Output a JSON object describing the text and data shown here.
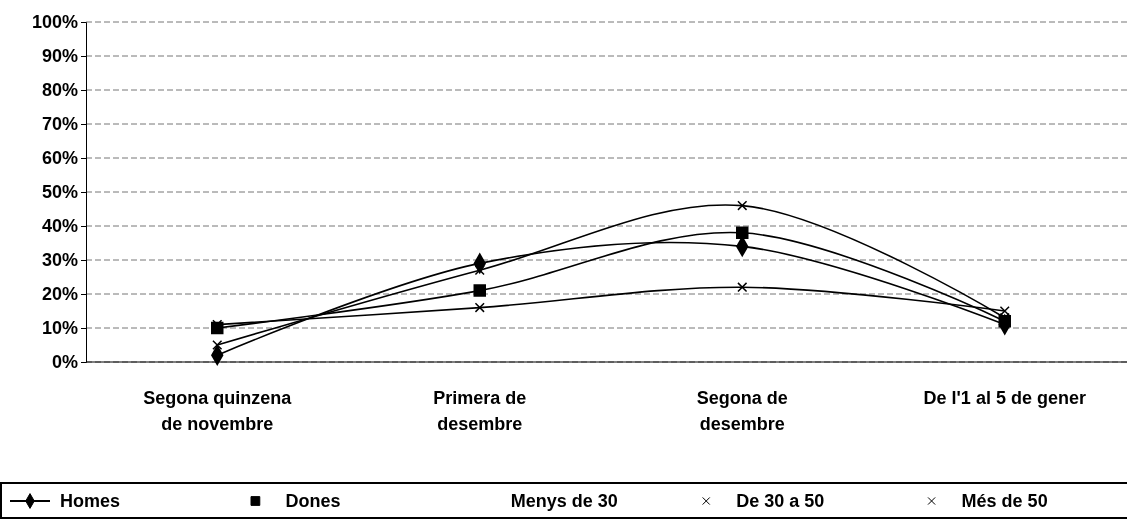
{
  "chart_data": {
    "type": "line",
    "categories": [
      "Segona quinzena\nde novembre",
      "Primera de\ndesembre",
      "Segona de\ndesembre",
      "De l'1 al 5 de gener"
    ],
    "series": [
      {
        "name": "Homes",
        "color": "#000000",
        "marker": "diamond",
        "values": [
          2,
          29,
          34,
          11
        ]
      },
      {
        "name": "Dones",
        "color": "#000000",
        "marker": "square",
        "values": [
          10,
          21,
          38,
          12
        ]
      },
      {
        "name": "Menys de 30",
        "marker": "none",
        "values": [
          null,
          null,
          null,
          null
        ]
      },
      {
        "name": "De 30 a 50",
        "color": "#000000",
        "marker": "cross",
        "values": [
          5,
          27,
          46,
          13
        ]
      },
      {
        "name": "Més de 50",
        "color": "#000000",
        "marker": "cross",
        "values": [
          11,
          16,
          22,
          15
        ]
      }
    ],
    "ylim": [
      0,
      100
    ],
    "yticks": [
      {
        "value": 0,
        "label": "0%"
      },
      {
        "value": 10,
        "label": "10%"
      },
      {
        "value": 20,
        "label": "20%"
      },
      {
        "value": 30,
        "label": "30%"
      },
      {
        "value": 40,
        "label": "40%"
      },
      {
        "value": 50,
        "label": "50%"
      },
      {
        "value": 60,
        "label": "60%"
      },
      {
        "value": 70,
        "label": "70%"
      },
      {
        "value": 80,
        "label": "80%"
      },
      {
        "value": 90,
        "label": "90%"
      },
      {
        "value": 100,
        "label": "100%"
      }
    ],
    "grid": "y",
    "legend": "bottom"
  }
}
